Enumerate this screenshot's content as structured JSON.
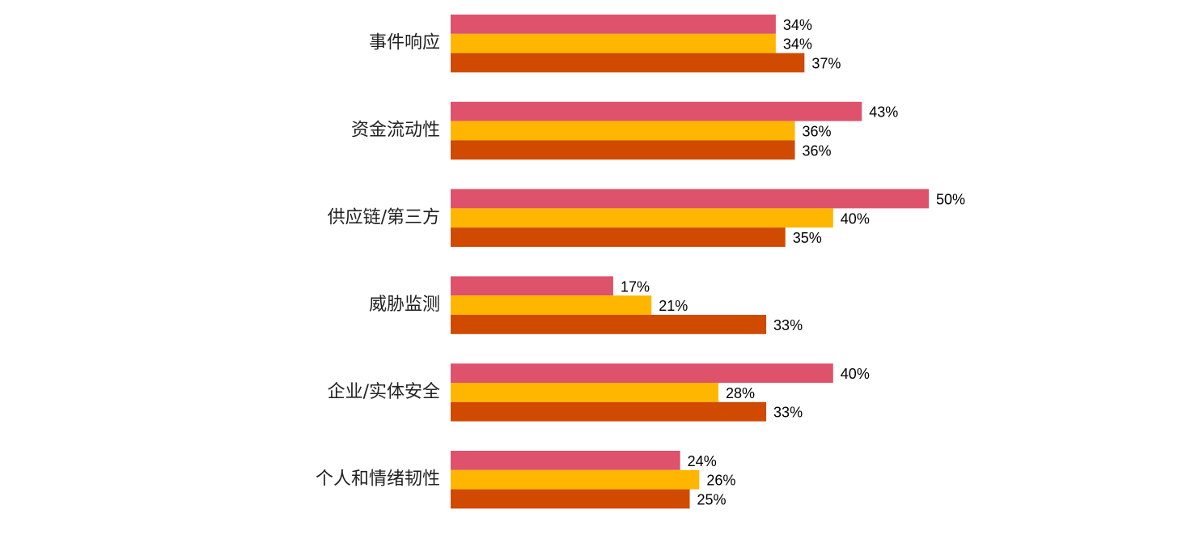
{
  "chart_data": {
    "type": "bar",
    "orientation": "horizontal",
    "categories": [
      "事件响应",
      "资金流动性",
      "供应链/第三方",
      "威胁监测",
      "企业/实体安全",
      "个人和情绪韧性"
    ],
    "series": [
      {
        "values": [
          34,
          43,
          50,
          17,
          40,
          24
        ],
        "labels": [
          "34%",
          "43%",
          "50%",
          "17%",
          "40%",
          "24%"
        ]
      },
      {
        "values": [
          34,
          36,
          40,
          21,
          28,
          26
        ],
        "labels": [
          "34%",
          "36%",
          "40%",
          "21%",
          "28%",
          "26%"
        ]
      },
      {
        "values": [
          37,
          36,
          35,
          33,
          33,
          25
        ],
        "labels": [
          "37%",
          "36%",
          "35%",
          "33%",
          "33%",
          "25%"
        ]
      }
    ],
    "colors": [
      "#DE526C",
      "#FFB600",
      "#D04A02"
    ],
    "unit": "%",
    "title": "",
    "xlabel": "",
    "ylabel": "",
    "grid": false,
    "legend": "none"
  }
}
